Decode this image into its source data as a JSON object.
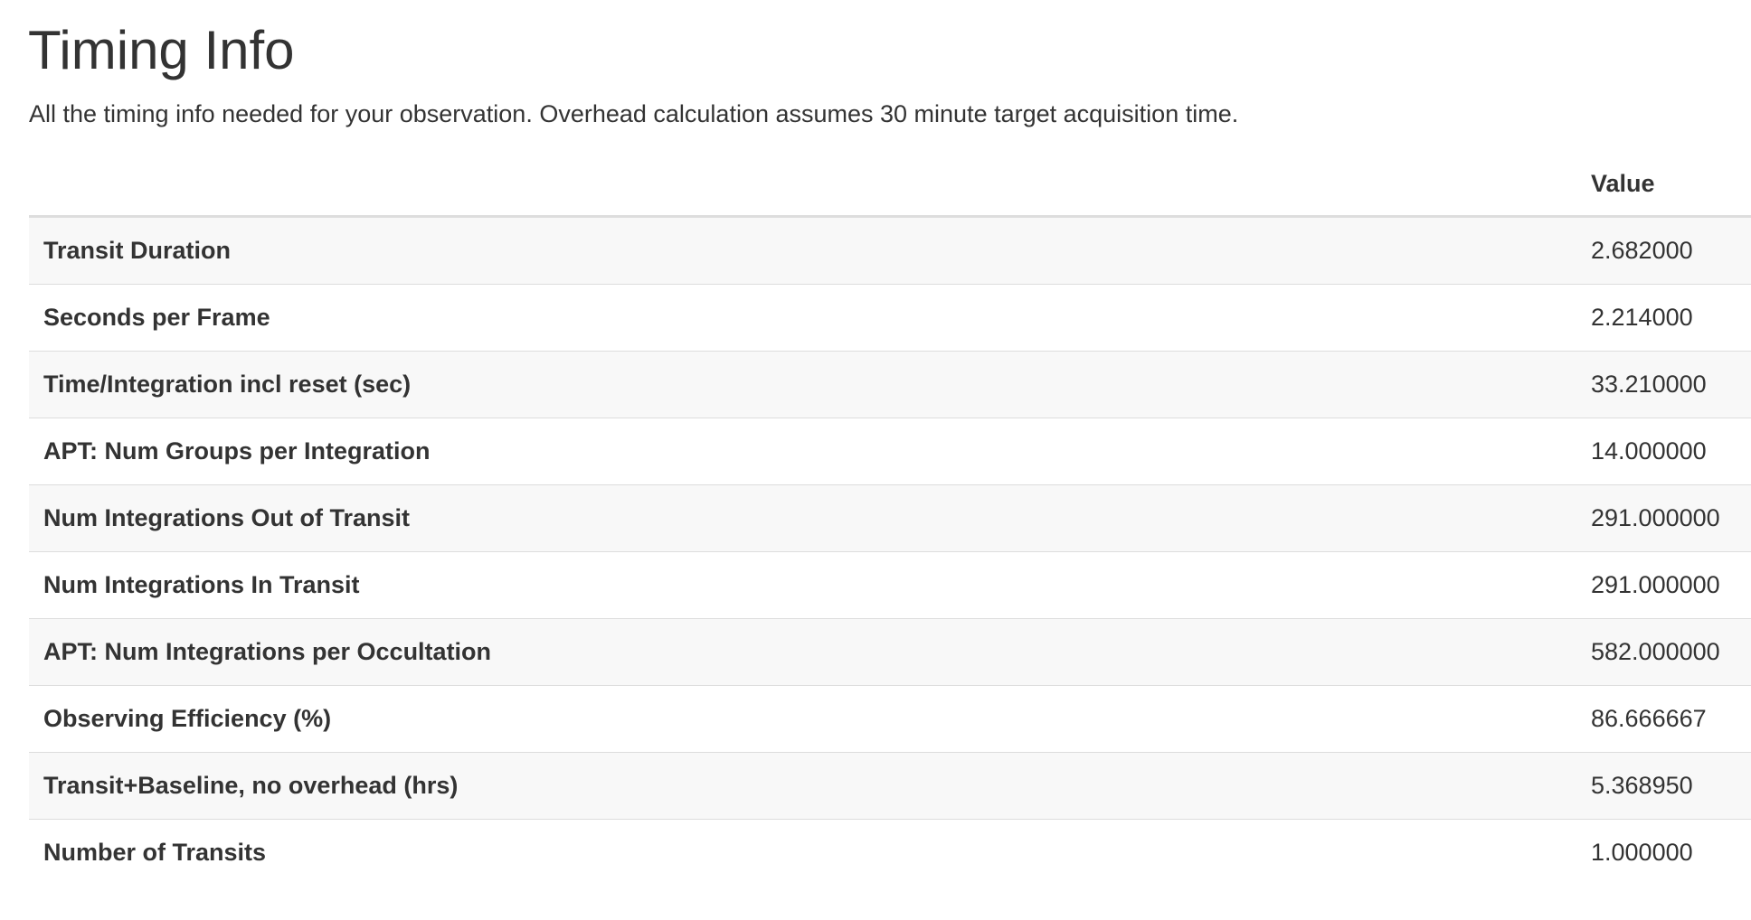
{
  "section": {
    "title": "Timing Info",
    "subtitle": "All the timing info needed for your observation. Overhead calculation assumes 30 minute target acquisition time."
  },
  "table": {
    "columns": [
      "",
      "Value"
    ],
    "rows": [
      {
        "label": "Transit Duration",
        "value": "2.682000"
      },
      {
        "label": "Seconds per Frame",
        "value": "2.214000"
      },
      {
        "label": "Time/Integration incl reset (sec)",
        "value": "33.210000"
      },
      {
        "label": "APT: Num Groups per Integration",
        "value": "14.000000"
      },
      {
        "label": "Num Integrations Out of Transit",
        "value": "291.000000"
      },
      {
        "label": "Num Integrations In Transit",
        "value": "291.000000"
      },
      {
        "label": "APT: Num Integrations per Occultation",
        "value": "582.000000"
      },
      {
        "label": "Observing Efficiency (%)",
        "value": "86.666667"
      },
      {
        "label": "Transit+Baseline, no overhead (hrs)",
        "value": "5.368950"
      },
      {
        "label": "Number of Transits",
        "value": "1.000000"
      }
    ]
  }
}
